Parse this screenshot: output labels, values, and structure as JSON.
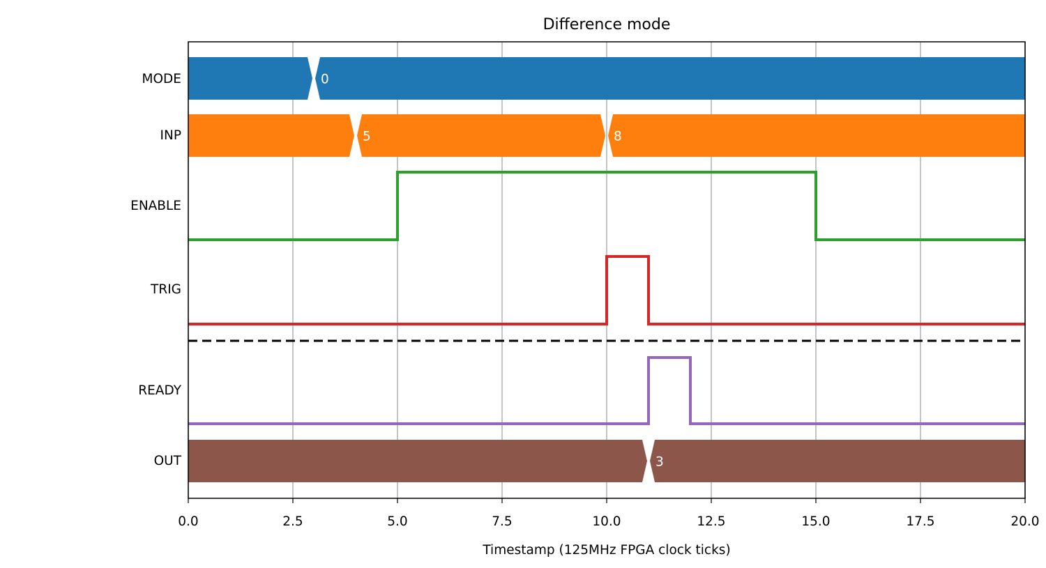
{
  "chart_data": {
    "type": "timing",
    "title": "Difference mode",
    "xlabel": "Timestamp (125MHz FPGA clock ticks)",
    "xlim": [
      0,
      20
    ],
    "xticks": [
      "0.0",
      "2.5",
      "5.0",
      "7.5",
      "10.0",
      "12.5",
      "15.0",
      "17.5",
      "20.0"
    ],
    "grid": "vertical",
    "separator": "dashed line between TRIG and READY",
    "signals": [
      {
        "name": "MODE",
        "kind": "bus",
        "color": "#1f77b4",
        "transitions": [
          3
        ],
        "values": [
          {
            "x": 3,
            "label": "0"
          }
        ]
      },
      {
        "name": "INP",
        "kind": "bus",
        "color": "#ff7f0e",
        "transitions": [
          4,
          10
        ],
        "values": [
          {
            "x": 4,
            "label": "5"
          },
          {
            "x": 10,
            "label": "8"
          }
        ]
      },
      {
        "name": "ENABLE",
        "kind": "bit",
        "color": "#2ca02c",
        "steps": [
          [
            0,
            0
          ],
          [
            5,
            1
          ],
          [
            15,
            0
          ],
          [
            20,
            0
          ]
        ]
      },
      {
        "name": "TRIG",
        "kind": "bit",
        "color": "#d62728",
        "steps": [
          [
            0,
            0
          ],
          [
            10,
            1
          ],
          [
            11,
            0
          ],
          [
            20,
            0
          ]
        ]
      },
      {
        "name": "READY",
        "kind": "bit",
        "color": "#9467bd",
        "steps": [
          [
            0,
            0
          ],
          [
            11,
            1
          ],
          [
            12,
            0
          ],
          [
            20,
            0
          ]
        ]
      },
      {
        "name": "OUT",
        "kind": "bus",
        "color": "#8c564b",
        "transitions": [
          11
        ],
        "values": [
          {
            "x": 11,
            "label": "3"
          }
        ]
      }
    ]
  }
}
